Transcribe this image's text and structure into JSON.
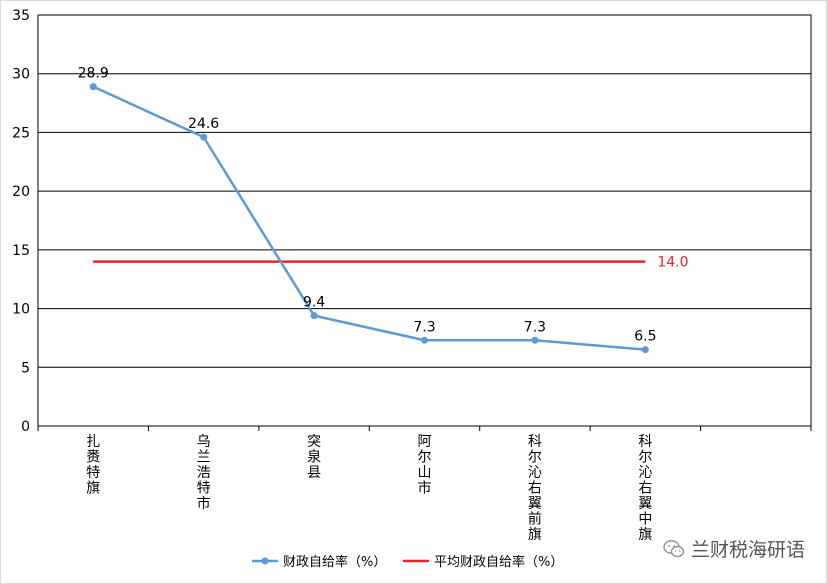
{
  "chart_data": {
    "type": "line",
    "categories": [
      "扎赉特旗",
      "乌兰浩特市",
      "突泉县",
      "阿尔山市",
      "科尔沁右翼前旗",
      "科尔沁右翼中旗"
    ],
    "series": [
      {
        "name": "财政自给率（%）",
        "values": [
          28.9,
          24.6,
          9.4,
          7.3,
          7.3,
          6.5
        ],
        "labels": [
          "28.9",
          "24.6",
          "9.4",
          "7.3",
          "7.3",
          "6.5"
        ],
        "color": "#5b9bd5"
      },
      {
        "name": "平均财政自给率（%）",
        "values": [
          14.0,
          14.0,
          14.0,
          14.0,
          14.0,
          14.0
        ],
        "end_label": "14.0",
        "color": "#e8251f"
      }
    ],
    "ylim": [
      0,
      35
    ],
    "yticks": [
      0,
      5,
      10,
      15,
      20,
      25,
      30,
      35
    ],
    "grid": true,
    "legend": "bottom"
  },
  "watermark": {
    "text": "兰财税海研语",
    "icon": "wechat-icon",
    "color": "#555555"
  }
}
